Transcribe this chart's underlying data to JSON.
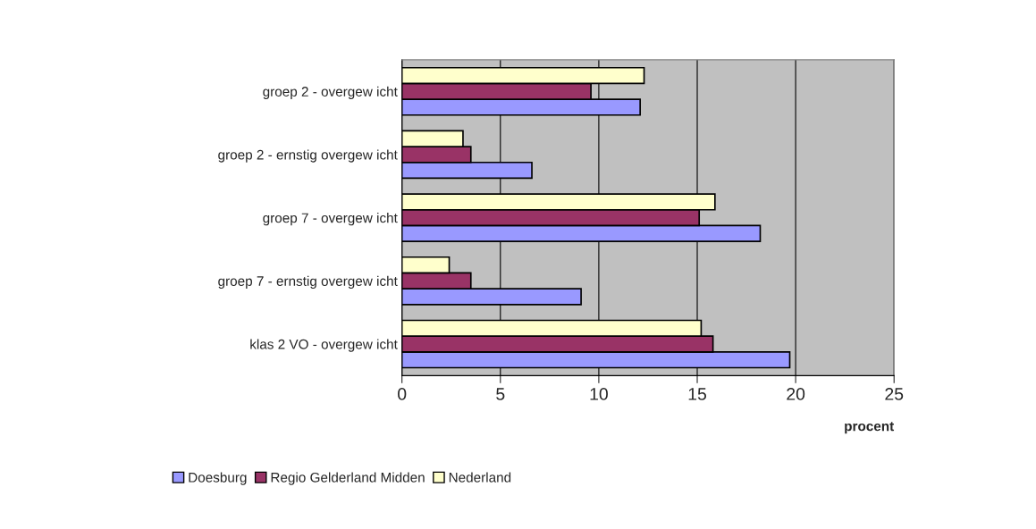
{
  "chart_data": {
    "type": "bar",
    "orientation": "horizontal",
    "xlabel": "procent",
    "categories": [
      "groep 2 - overgew icht",
      "groep 2 - ernstig overgew icht",
      "groep 7 - overgew icht",
      "groep 7 - ernstig overgew icht",
      "klas 2 VO - overgew icht"
    ],
    "series": [
      {
        "name": "Doesburg",
        "color": "#9999ff",
        "values": [
          12.1,
          6.6,
          18.2,
          9.1,
          19.7
        ]
      },
      {
        "name": "Regio Gelderland Midden",
        "color": "#993366",
        "values": [
          9.6,
          3.5,
          15.1,
          3.5,
          15.8
        ]
      },
      {
        "name": "Nederland",
        "color": "#ffffcc",
        "values": [
          12.3,
          3.1,
          15.9,
          2.4,
          15.2
        ]
      }
    ],
    "xlim": [
      0,
      25
    ],
    "xticks": [
      0,
      5,
      10,
      15,
      20,
      25
    ],
    "grid": "x",
    "legend": "bottom"
  }
}
